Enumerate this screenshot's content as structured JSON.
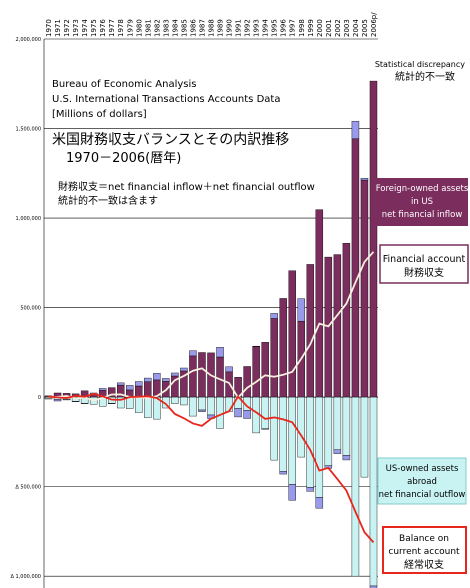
{
  "chart_data": {
    "type": "bar",
    "source_lines": [
      "Bureau of Economic Analysis",
      "U.S. International Transactions Accounts Data",
      "[Millions of dollars]"
    ],
    "title_jp": "米国財務収支バランスとその内訳推移",
    "period_jp": "1970－2006(暦年)",
    "note_line1": "財務収支＝net financial inflow＋net financial outflow",
    "note_line2": "統計的不一致は含ます",
    "y_ticks": [
      {
        "v": 2000000,
        "label": "2,000,000"
      },
      {
        "v": 1500000,
        "label": "1,500,000"
      },
      {
        "v": 1000000,
        "label": "1,000,000"
      },
      {
        "v": 500000,
        "label": "500,000"
      },
      {
        "v": 0,
        "label": "0"
      },
      {
        "v": -500000,
        "label": "Δ 500,000"
      },
      {
        "v": -1000000,
        "label": "Δ 1,000,000"
      }
    ],
    "ylim": [
      -1150000,
      2000000
    ],
    "categories": [
      "1970",
      "1971",
      "1972",
      "1973",
      "1974",
      "1975",
      "1976",
      "1977",
      "1978",
      "1979",
      "1980",
      "1981",
      "1982",
      "1983",
      "1984",
      "1985",
      "1986",
      "1987",
      "1988",
      "1989",
      "1990",
      "1991",
      "1992",
      "1993",
      "1994",
      "1995",
      "1996",
      "1997",
      "1998",
      "1999",
      "2000",
      "2001",
      "2002",
      "2003",
      "2004",
      "2005",
      "2006p/"
    ],
    "series": [
      {
        "name": "Foreign-owned assets in US net financial inflow",
        "values": [
          7000,
          23000,
          21000,
          18000,
          35000,
          17000,
          38000,
          53000,
          67000,
          40000,
          62000,
          86000,
          96000,
          88000,
          118000,
          146000,
          230000,
          249000,
          247000,
          224000,
          141000,
          111000,
          171000,
          283000,
          306000,
          439000,
          551000,
          706000,
          424000,
          741000,
          1047000,
          782000,
          796000,
          859000,
          1443000,
          1212000,
          1765000
        ]
      },
      {
        "name": "US-owned assets abroad net financial outflow",
        "values": [
          -9000,
          -12000,
          -14000,
          -23000,
          -35000,
          -40000,
          -51000,
          -35000,
          -61000,
          -64000,
          -86000,
          -114000,
          -123000,
          -61000,
          -36000,
          -44000,
          -106000,
          -72000,
          -100000,
          -175000,
          -81000,
          -64000,
          -74000,
          -200000,
          -177000,
          -352000,
          -414000,
          -488000,
          -335000,
          -504000,
          -560000,
          -383000,
          -294000,
          -325000,
          -1000000,
          -447000,
          -1055000
        ]
      },
      {
        "name": "Statistical discrepancy",
        "values": [
          -219,
          -9779,
          -1879,
          -2654,
          -1620,
          5917,
          10455,
          -2199,
          12521,
          25431,
          24987,
          20284,
          36630,
          16162,
          16733,
          16478,
          28590,
          -9133,
          -19430,
          54196,
          28066,
          -46710,
          -45438,
          1403,
          -3346,
          28401,
          -15895,
          -87898,
          125902,
          -22155,
          -60400,
          -14963,
          -21786,
          -26062,
          98066,
          10410,
          -17813
        ]
      },
      {
        "name": "Balance on current account",
        "values": [
          2331,
          -1433,
          -5795,
          7140,
          1962,
          18116,
          4295,
          -14335,
          -15143,
          -285,
          2317,
          5030,
          -5536,
          -38691,
          -94344,
          -118155,
          -147177,
          -160655,
          -121153,
          -99486,
          -78968,
          2897,
          -51613,
          -84805,
          -121612,
          -113567,
          -124764,
          -140726,
          -215062,
          -295530,
          -410341,
          -395328,
          -458087,
          -522101,
          -640148,
          -754848,
          -811477
        ]
      },
      {
        "name": "Financial account",
        "values": [
          -2331,
          1433,
          5795,
          -7140,
          -1962,
          -18116,
          -4295,
          14335,
          15143,
          285,
          -2317,
          -5030,
          5536,
          38691,
          94344,
          118155,
          147177,
          160655,
          121153,
          99486,
          78968,
          -2897,
          51613,
          84805,
          121612,
          113567,
          124764,
          140726,
          215062,
          295530,
          410341,
          395328,
          458087,
          522101,
          640148,
          754848,
          811477
        ]
      }
    ],
    "legend": {
      "stat_disc_en": "Statistical discrepancy",
      "stat_disc_jp": "統計的不一致",
      "inflow_l1": "Foreign-owned assets",
      "inflow_l2": "in US",
      "inflow_l3": "net financial inflow",
      "fa_en": "Financial account",
      "fa_jp": "財務収支",
      "outflow_l1": "US-owned assets",
      "outflow_l2": "abroad",
      "outflow_l3": "net financial outflow",
      "ca_l1": "Balance on",
      "ca_l2": "current account",
      "ca_jp": "経常収支"
    },
    "colors": {
      "inflow": "#7B2D5E",
      "outflow": "#C9F3F3",
      "discrepancy": "#9A9AEA",
      "financial_line": "#F5F0DC",
      "current_line": "#E8261C",
      "legend_box_dark": "#7B2D5E",
      "legend_box_light": "#C9F3F3",
      "legend_red_border": "#E8261C",
      "legend_line_border": "#7B2D5E"
    },
    "grid": true
  }
}
